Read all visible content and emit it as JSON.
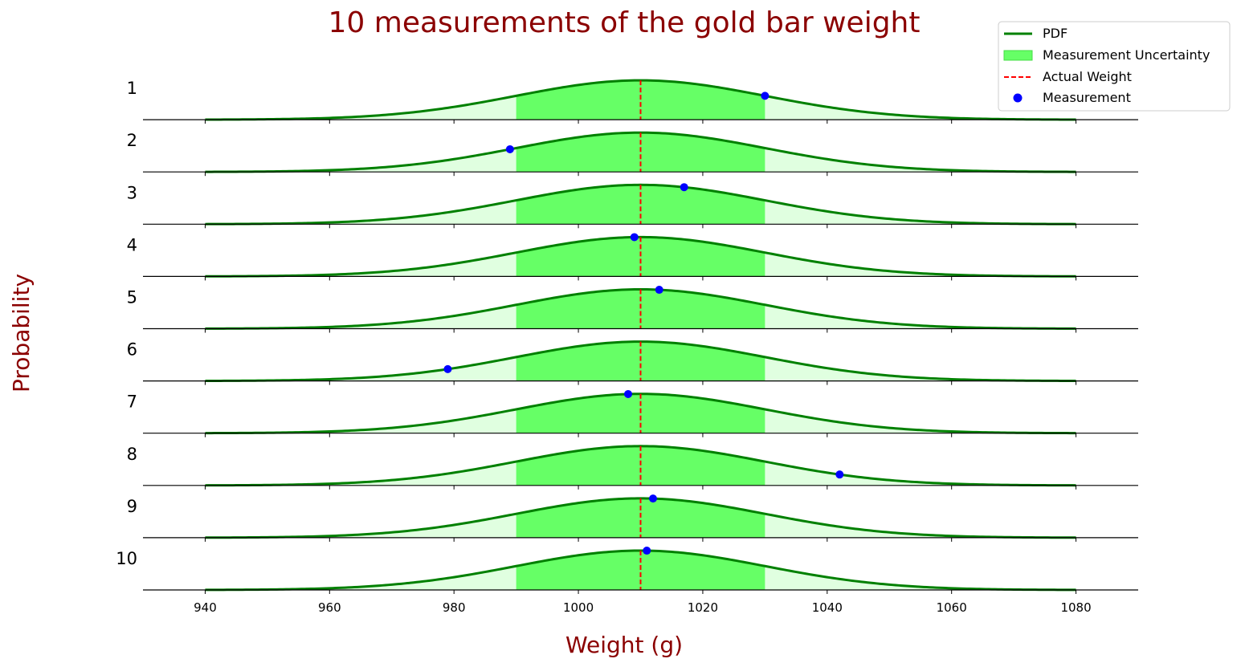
{
  "chart_data": {
    "type": "line",
    "title": "10 measurements of the gold bar weight",
    "xlabel": "Weight (g)",
    "ylabel": "Probability",
    "xlim": [
      930,
      1090
    ],
    "x_ticks": [
      940,
      960,
      980,
      1000,
      1020,
      1040,
      1060,
      1080
    ],
    "pdf_range": [
      940,
      1080
    ],
    "actual_weight": 1010,
    "uncertainty_range": [
      990,
      1030
    ],
    "sigma": 20,
    "legend": {
      "position": "top-right",
      "entries": [
        "PDF",
        "Measurement Uncertainty",
        "Actual Weight",
        "Measurement"
      ]
    },
    "series": [
      {
        "label": "1",
        "measurement": 1030
      },
      {
        "label": "2",
        "measurement": 989
      },
      {
        "label": "3",
        "measurement": 1017
      },
      {
        "label": "4",
        "measurement": 1009
      },
      {
        "label": "5",
        "measurement": 1013
      },
      {
        "label": "6",
        "measurement": 979
      },
      {
        "label": "7",
        "measurement": 1008
      },
      {
        "label": "8",
        "measurement": 1042
      },
      {
        "label": "9",
        "measurement": 1012
      },
      {
        "label": "10",
        "measurement": 1011
      }
    ],
    "colors": {
      "pdf": "#008000",
      "uncertainty_fill": "#66ff66",
      "tail_fill": "#e0ffe0",
      "actual": "#ff0000",
      "measurement": "#0000ff",
      "label_text": "#8b0000"
    }
  }
}
